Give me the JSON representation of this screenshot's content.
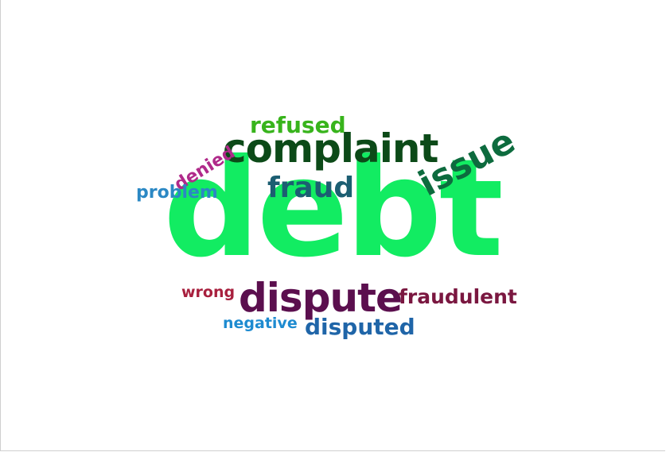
{
  "words": {
    "debt": {
      "text": "debt",
      "color": "#12ec62"
    },
    "complaint": {
      "text": "complaint",
      "color": "#0c4a18"
    },
    "dispute": {
      "text": "dispute",
      "color": "#5b0f4e"
    },
    "issue": {
      "text": "issue",
      "color": "#0d6b3e"
    },
    "fraud": {
      "text": "fraud",
      "color": "#1c5e72"
    },
    "refused": {
      "text": "refused",
      "color": "#38b41c"
    },
    "disputed": {
      "text": "disputed",
      "color": "#1f65a8"
    },
    "fraudulent": {
      "text": "fraudulent",
      "color": "#7a1740"
    },
    "problem": {
      "text": "problem",
      "color": "#2b88c4"
    },
    "denied": {
      "text": "denied",
      "color": "#b02a8a"
    },
    "wrong": {
      "text": "wrong",
      "color": "#a8203e"
    },
    "negative": {
      "text": "negative",
      "color": "#1e8bd0"
    }
  }
}
